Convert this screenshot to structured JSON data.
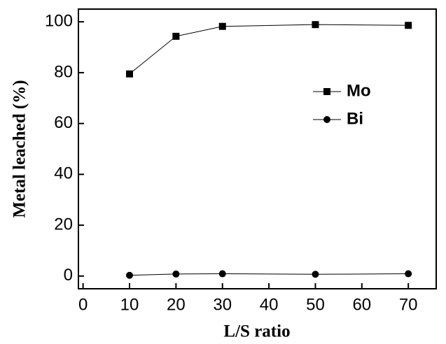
{
  "chart_data": {
    "type": "line",
    "x_label": "L/S ratio",
    "y_label": "Metal leached (%)",
    "x": [
      10,
      20,
      30,
      50,
      70
    ],
    "series": [
      {
        "name": "Mo",
        "color": "#000000",
        "marker": "square",
        "values": [
          79.5,
          94.3,
          98.2,
          98.9,
          98.6
        ]
      },
      {
        "name": "Bi",
        "color": "#000000",
        "marker": "circle",
        "values": [
          0.3,
          0.8,
          0.9,
          0.7,
          0.9
        ]
      }
    ],
    "xlim": [
      -1,
      76
    ],
    "xticks": [
      0,
      10,
      20,
      30,
      40,
      50,
      60,
      70
    ],
    "ylim": [
      -5,
      105
    ],
    "yticks": [
      0,
      20,
      40,
      60,
      80,
      100
    ]
  }
}
